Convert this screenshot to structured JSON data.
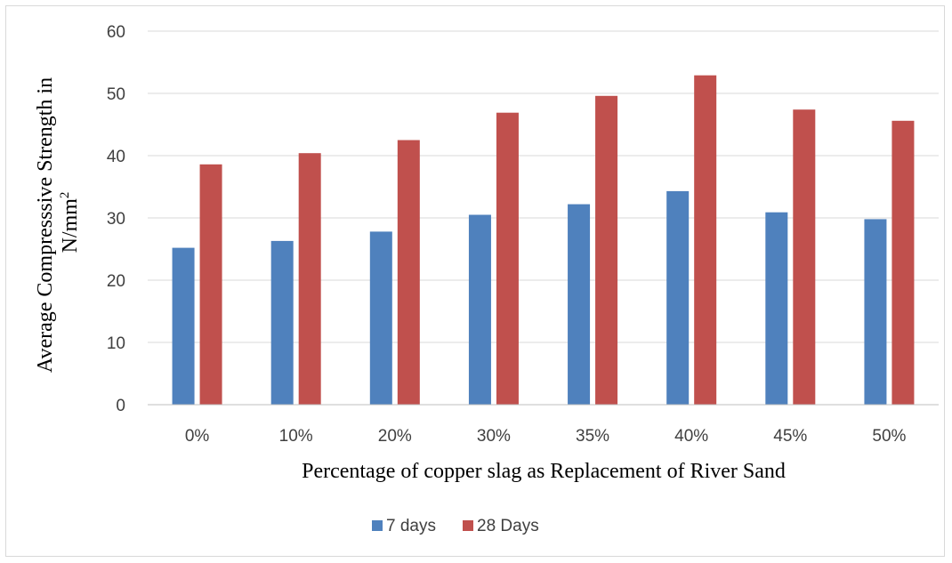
{
  "chart_data": {
    "type": "bar",
    "title": "",
    "xlabel": "Percentage of copper slag as Replacement of River Sand",
    "ylabel_line1": "Average Compresssive Strength in",
    "ylabel_line2_base": "N/mm",
    "ylabel_line2_sup": "2",
    "categories": [
      "0%",
      "10%",
      "20%",
      "30%",
      "35%",
      "40%",
      "45%",
      "50%"
    ],
    "series": [
      {
        "name": "7 days",
        "color": "#4f81bd",
        "values": [
          25.2,
          26.3,
          27.8,
          30.5,
          32.2,
          34.3,
          30.9,
          29.8
        ]
      },
      {
        "name": "28 Days",
        "color": "#c0504d",
        "values": [
          38.6,
          40.4,
          42.5,
          46.9,
          49.6,
          52.9,
          47.4,
          45.6
        ]
      }
    ],
    "ylim": [
      0,
      60
    ],
    "yticks": [
      0,
      10,
      20,
      30,
      40,
      50,
      60
    ],
    "grid": true,
    "legend": "bottom"
  }
}
